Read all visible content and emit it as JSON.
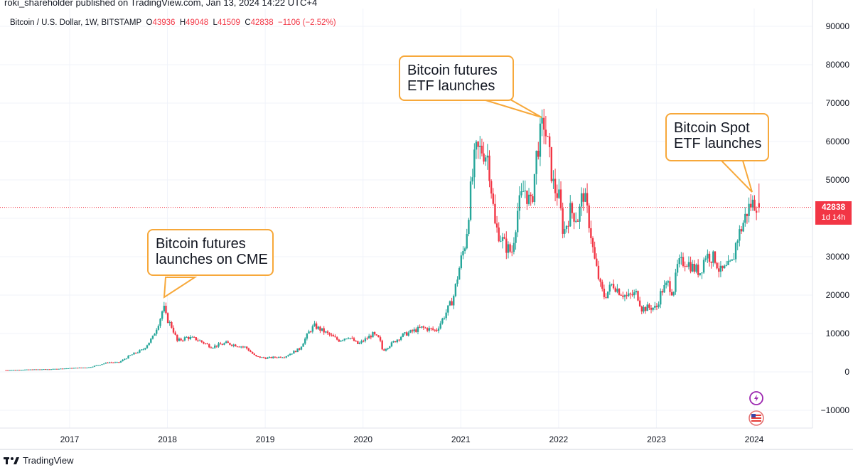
{
  "header": {
    "published": "roki_shareholder published on TradingView.com, Jan 13, 2024 14:22 UTC+4"
  },
  "legend": {
    "symbol": "Bitcoin / U.S. Dollar, 1W, BITSTAMP",
    "o_label": "O",
    "o_value": "43936",
    "h_label": "H",
    "h_value": "49048",
    "l_label": "L",
    "l_value": "41509",
    "c_label": "C",
    "c_value": "42838",
    "change": "−1106 (−2.52%)"
  },
  "callouts": {
    "cme": [
      "Bitcoin futures",
      "launches on CME"
    ],
    "futures_etf": [
      "Bitcoin futures",
      "ETF launches"
    ],
    "spot_etf": [
      "Bitcoin Spot",
      "ETF launches"
    ]
  },
  "price_badge": {
    "price": "42838",
    "countdown": "1d 14h"
  },
  "footer": {
    "brand": "TradingView"
  },
  "icons": {
    "lightning": "lightning-icon",
    "flag": "us-flag-icon",
    "logo": "tradingview-logo-icon"
  },
  "colors": {
    "up": "#26a69a",
    "down": "#f23645",
    "callout_border": "#f7a83a",
    "grid": "#f0f3fa"
  },
  "chart_data": {
    "type": "candlestick",
    "interval": "1W",
    "x_ticks": [
      "2017",
      "2018",
      "2019",
      "2020",
      "2021",
      "2022",
      "2023",
      "2024"
    ],
    "y_ticks": [
      -10000,
      0,
      10000,
      20000,
      30000,
      40000,
      50000,
      60000,
      70000,
      80000,
      90000
    ],
    "ylim": [
      -15000,
      95000
    ],
    "xlim": [
      2016.35,
      2024.55
    ],
    "last_price": 42838,
    "close_series": [
      {
        "x": 2016.35,
        "close": 450
      },
      {
        "x": 2016.6,
        "close": 620
      },
      {
        "x": 2016.8,
        "close": 700
      },
      {
        "x": 2017.0,
        "close": 960
      },
      {
        "x": 2017.2,
        "close": 1200
      },
      {
        "x": 2017.4,
        "close": 2500
      },
      {
        "x": 2017.5,
        "close": 2400
      },
      {
        "x": 2017.62,
        "close": 4300
      },
      {
        "x": 2017.75,
        "close": 5800
      },
      {
        "x": 2017.85,
        "close": 9000
      },
      {
        "x": 2017.92,
        "close": 13500
      },
      {
        "x": 2017.96,
        "close": 17000
      },
      {
        "x": 2017.99,
        "close": 14000
      },
      {
        "x": 2018.05,
        "close": 11500
      },
      {
        "x": 2018.1,
        "close": 8000
      },
      {
        "x": 2018.2,
        "close": 9000
      },
      {
        "x": 2018.3,
        "close": 8500
      },
      {
        "x": 2018.45,
        "close": 6500
      },
      {
        "x": 2018.6,
        "close": 7500
      },
      {
        "x": 2018.8,
        "close": 6400
      },
      {
        "x": 2018.9,
        "close": 4000
      },
      {
        "x": 2019.0,
        "close": 3600
      },
      {
        "x": 2019.2,
        "close": 4000
      },
      {
        "x": 2019.35,
        "close": 6000
      },
      {
        "x": 2019.45,
        "close": 10500
      },
      {
        "x": 2019.5,
        "close": 12000
      },
      {
        "x": 2019.6,
        "close": 10500
      },
      {
        "x": 2019.75,
        "close": 8200
      },
      {
        "x": 2019.85,
        "close": 9200
      },
      {
        "x": 2019.95,
        "close": 7200
      },
      {
        "x": 2020.1,
        "close": 9800
      },
      {
        "x": 2020.17,
        "close": 8500
      },
      {
        "x": 2020.2,
        "close": 5500
      },
      {
        "x": 2020.3,
        "close": 7500
      },
      {
        "x": 2020.4,
        "close": 9500
      },
      {
        "x": 2020.6,
        "close": 11500
      },
      {
        "x": 2020.75,
        "close": 10800
      },
      {
        "x": 2020.85,
        "close": 15500
      },
      {
        "x": 2020.92,
        "close": 19000
      },
      {
        "x": 2021.0,
        "close": 29000
      },
      {
        "x": 2021.05,
        "close": 34000
      },
      {
        "x": 2021.1,
        "close": 47000
      },
      {
        "x": 2021.15,
        "close": 57000
      },
      {
        "x": 2021.22,
        "close": 58000
      },
      {
        "x": 2021.28,
        "close": 56000
      },
      {
        "x": 2021.35,
        "close": 38000
      },
      {
        "x": 2021.45,
        "close": 33000
      },
      {
        "x": 2021.52,
        "close": 31000
      },
      {
        "x": 2021.58,
        "close": 42000
      },
      {
        "x": 2021.65,
        "close": 48000
      },
      {
        "x": 2021.72,
        "close": 43000
      },
      {
        "x": 2021.78,
        "close": 58000
      },
      {
        "x": 2021.85,
        "close": 65000
      },
      {
        "x": 2021.9,
        "close": 57000
      },
      {
        "x": 2021.95,
        "close": 48000
      },
      {
        "x": 2022.0,
        "close": 46000
      },
      {
        "x": 2022.05,
        "close": 36000
      },
      {
        "x": 2022.12,
        "close": 42000
      },
      {
        "x": 2022.2,
        "close": 40000
      },
      {
        "x": 2022.25,
        "close": 47000
      },
      {
        "x": 2022.32,
        "close": 38000
      },
      {
        "x": 2022.36,
        "close": 30000
      },
      {
        "x": 2022.43,
        "close": 22000
      },
      {
        "x": 2022.47,
        "close": 19500
      },
      {
        "x": 2022.55,
        "close": 23000
      },
      {
        "x": 2022.62,
        "close": 21000
      },
      {
        "x": 2022.7,
        "close": 19500
      },
      {
        "x": 2022.8,
        "close": 20500
      },
      {
        "x": 2022.85,
        "close": 16500
      },
      {
        "x": 2022.95,
        "close": 16800
      },
      {
        "x": 2023.0,
        "close": 16600
      },
      {
        "x": 2023.05,
        "close": 21000
      },
      {
        "x": 2023.12,
        "close": 23000
      },
      {
        "x": 2023.17,
        "close": 20500
      },
      {
        "x": 2023.22,
        "close": 28000
      },
      {
        "x": 2023.3,
        "close": 29000
      },
      {
        "x": 2023.38,
        "close": 27000
      },
      {
        "x": 2023.45,
        "close": 26000
      },
      {
        "x": 2023.5,
        "close": 30500
      },
      {
        "x": 2023.6,
        "close": 29500
      },
      {
        "x": 2023.65,
        "close": 26000
      },
      {
        "x": 2023.72,
        "close": 27000
      },
      {
        "x": 2023.78,
        "close": 28500
      },
      {
        "x": 2023.82,
        "close": 34500
      },
      {
        "x": 2023.87,
        "close": 37500
      },
      {
        "x": 2023.93,
        "close": 42000
      },
      {
        "x": 2023.96,
        "close": 43500
      },
      {
        "x": 2024.0,
        "close": 44000
      },
      {
        "x": 2024.03,
        "close": 43936
      }
    ],
    "final_candle": {
      "open": 43936,
      "high": 49048,
      "low": 41509,
      "close": 42838
    }
  }
}
